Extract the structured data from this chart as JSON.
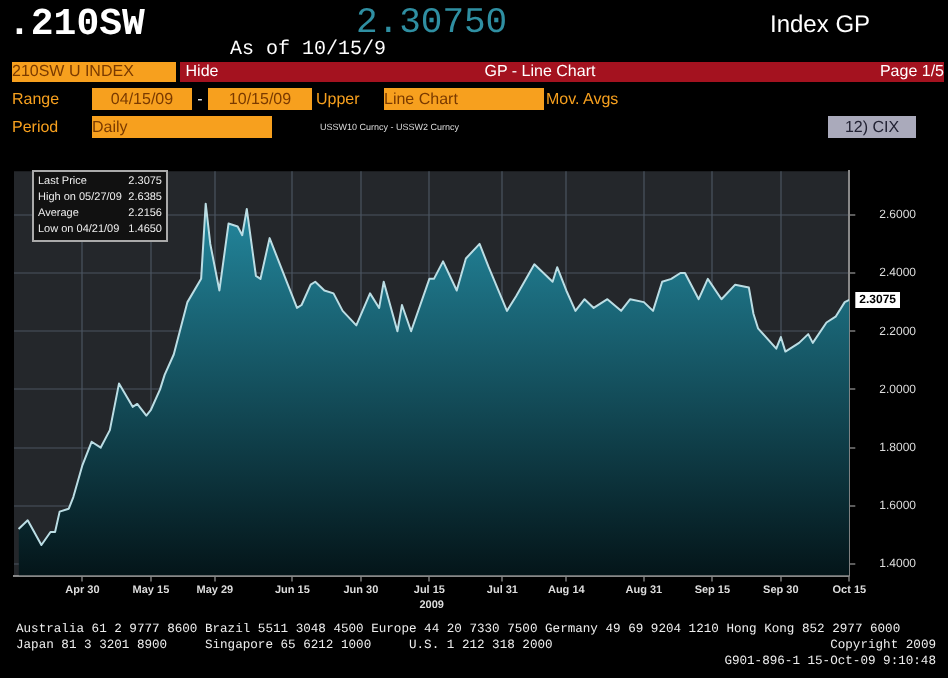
{
  "chart_data": {
    "type": "area",
    "title": ".210SW",
    "subtitle": "2.30750",
    "xlabel": "2009",
    "x": [
      "2009-04-16",
      "2009-04-18",
      "2009-04-21",
      "2009-04-23",
      "2009-04-24",
      "2009-04-25",
      "2009-04-27",
      "2009-04-28",
      "2009-04-30",
      "2009-05-02",
      "2009-05-04",
      "2009-05-06",
      "2009-05-08",
      "2009-05-11",
      "2009-05-12",
      "2009-05-14",
      "2009-05-15",
      "2009-05-17",
      "2009-05-18",
      "2009-05-20",
      "2009-05-23",
      "2009-05-26",
      "2009-05-27",
      "2009-05-28",
      "2009-05-30",
      "2009-06-01",
      "2009-06-03",
      "2009-06-04",
      "2009-06-05",
      "2009-06-07",
      "2009-06-08",
      "2009-06-10",
      "2009-06-14",
      "2009-06-16",
      "2009-06-17",
      "2009-06-19",
      "2009-06-20",
      "2009-06-22",
      "2009-06-24",
      "2009-06-26",
      "2009-06-29",
      "2009-07-02",
      "2009-07-04",
      "2009-07-05",
      "2009-07-08",
      "2009-07-09",
      "2009-07-11",
      "2009-07-15",
      "2009-07-16",
      "2009-07-18",
      "2009-07-21",
      "2009-07-23",
      "2009-07-26",
      "2009-07-28",
      "2009-08-01",
      "2009-08-03",
      "2009-08-07",
      "2009-08-11",
      "2009-08-12",
      "2009-08-14",
      "2009-08-16",
      "2009-08-18",
      "2009-08-20",
      "2009-08-23",
      "2009-08-26",
      "2009-08-28",
      "2009-08-31",
      "2009-09-02",
      "2009-09-04",
      "2009-09-06",
      "2009-09-08",
      "2009-09-09",
      "2009-09-12",
      "2009-09-14",
      "2009-09-17",
      "2009-09-20",
      "2009-09-23",
      "2009-09-24",
      "2009-09-25",
      "2009-09-29",
      "2009-09-30",
      "2009-10-01",
      "2009-10-04",
      "2009-10-06",
      "2009-10-07",
      "2009-10-10",
      "2009-10-12",
      "2009-10-14",
      "2009-10-15"
    ],
    "series": [
      {
        "color": "#1b8ca6",
        "values": [
          1.52,
          1.55,
          1.465,
          1.51,
          1.51,
          1.58,
          1.59,
          1.63,
          1.74,
          1.82,
          1.8,
          1.86,
          2.02,
          1.94,
          1.95,
          1.91,
          1.93,
          2.0,
          2.05,
          2.12,
          2.3,
          2.38,
          2.6385,
          2.5,
          2.34,
          2.57,
          2.56,
          2.53,
          2.62,
          2.39,
          2.38,
          2.52,
          2.36,
          2.28,
          2.29,
          2.36,
          2.37,
          2.34,
          2.33,
          2.27,
          2.22,
          2.33,
          2.28,
          2.37,
          2.2,
          2.29,
          2.2,
          2.38,
          2.38,
          2.44,
          2.34,
          2.45,
          2.5,
          2.42,
          2.27,
          2.32,
          2.43,
          2.37,
          2.42,
          2.34,
          2.27,
          2.31,
          2.28,
          2.31,
          2.27,
          2.31,
          2.3,
          2.27,
          2.37,
          2.38,
          2.4,
          2.4,
          2.31,
          2.38,
          2.31,
          2.36,
          2.35,
          2.26,
          2.21,
          2.14,
          2.18,
          2.13,
          2.16,
          2.19,
          2.16,
          2.23,
          2.25,
          2.3,
          2.3075
        ]
      }
    ],
    "xlim": [
      "2009-04-15",
      "2009-10-15"
    ],
    "xticks": [
      {
        "value": "2009-04-30",
        "label": "Apr 30"
      },
      {
        "value": "2009-05-15",
        "label": "May 15"
      },
      {
        "value": "2009-05-29",
        "label": "May 29"
      },
      {
        "value": "2009-06-15",
        "label": "Jun 15"
      },
      {
        "value": "2009-06-30",
        "label": "Jun 30"
      },
      {
        "value": "2009-07-15",
        "label": "Jul 15"
      },
      {
        "value": "2009-07-31",
        "label": "Jul 31"
      },
      {
        "value": "2009-08-14",
        "label": "Aug 14"
      },
      {
        "value": "2009-08-31",
        "label": "Aug 31"
      },
      {
        "value": "2009-09-15",
        "label": "Sep 15"
      },
      {
        "value": "2009-09-30",
        "label": "Sep 30"
      },
      {
        "value": "2009-10-15",
        "label": "Oct 15"
      }
    ],
    "ylim": [
      1.36,
      2.75
    ],
    "yticks": [
      {
        "value": 1.4,
        "label": "1.4000"
      },
      {
        "value": 1.6,
        "label": "1.6000"
      },
      {
        "value": 1.8,
        "label": "1.8000"
      },
      {
        "value": 2.0,
        "label": "2.0000"
      },
      {
        "value": 2.2,
        "label": "2.2000"
      },
      {
        "value": 2.4,
        "label": "2.4000"
      },
      {
        "value": 2.6,
        "label": "2.6000"
      }
    ],
    "grid": true,
    "marker": "none",
    "annotations": [
      "Index GP",
      "As of 10/15/9",
      "210SW U INDEX",
      "Hide",
      "GP - Line Chart",
      "Page 1/5",
      "Range",
      "04/15/09",
      "-",
      "10/15/09",
      "Upper",
      "Line Chart",
      "Mov. Avgs",
      "Period",
      "Daily",
      "USSW10 Curncy - USSW2 Curncy",
      "12) CIX",
      "Last Price 2.3075",
      "High on 05/27/09 2.6385",
      "Average 2.2156",
      "Low on 04/21/09 1.4650",
      "Australia 61 2 9777 8600 Brazil 5511 3048 4500 Europe 44 20 7330 7500 Germany 49 69 9204 1210 Hong Kong 852 2977 6000",
      "Japan 81 3 3201 8900     Singapore 65 6212 1000     U.S. 1 212 318 2000",
      "Copyright 2009",
      "G901-896-1 15-Oct-09 9:10:48",
      {
        "text": "2.3075",
        "x": "2009-10-15",
        "y": 2.3075
      }
    ]
  }
}
